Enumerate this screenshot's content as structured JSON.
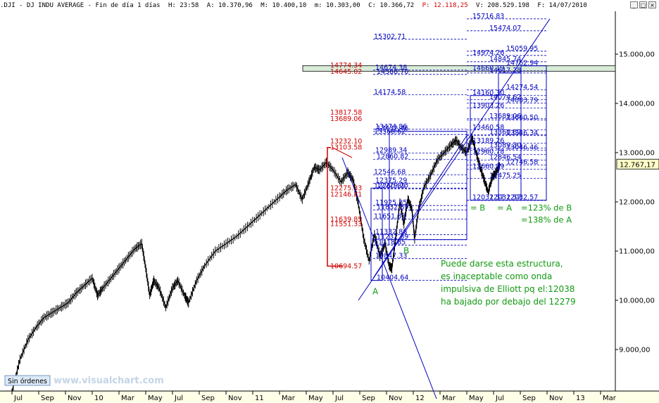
{
  "header": {
    "symbol": ".DJI - DJ INDU AVERAGE - Fin de día 1 días",
    "high": "H: 23:58",
    "open": "A: 10.370,96",
    "max": "M: 10.400,10",
    "min": "m: 10.303,00",
    "close": "C: 10.366,72",
    "pct": "P: 12.118,25",
    "volume": "V: 208.529.198",
    "date": "F: 14/07/2010",
    "window_buttons": [
      "_",
      "□",
      "×"
    ]
  },
  "chart_data": {
    "type": "line",
    "title": "",
    "xlabel": "",
    "ylabel": "",
    "ylim": [
      8250,
      16000
    ],
    "grid": false,
    "last_price": "12.767,17",
    "y_ticks": [
      {
        "value": 9000,
        "label": "9.000,00"
      },
      {
        "value": 10000,
        "label": "10.000,00"
      },
      {
        "value": 11000,
        "label": "11.000,00"
      },
      {
        "value": 12000,
        "label": "12.000,00"
      },
      {
        "value": 13000,
        "label": "13.000,00"
      },
      {
        "value": 14000,
        "label": "14.000,00"
      },
      {
        "value": 15000,
        "label": "15.000,00"
      }
    ],
    "x_ticks": [
      {
        "i": 0,
        "label": "Jul"
      },
      {
        "i": 1,
        "label": "Sep"
      },
      {
        "i": 2,
        "label": "Nov"
      },
      {
        "i": 3,
        "label": "10"
      },
      {
        "i": 4,
        "label": "Mar"
      },
      {
        "i": 5,
        "label": "May"
      },
      {
        "i": 6,
        "label": "Jul"
      },
      {
        "i": 7,
        "label": "Sep"
      },
      {
        "i": 8,
        "label": "Nov"
      },
      {
        "i": 9,
        "label": "11"
      },
      {
        "i": 10,
        "label": "Mar"
      },
      {
        "i": 11,
        "label": "May"
      },
      {
        "i": 12,
        "label": "Jul"
      },
      {
        "i": 13,
        "label": "Sep"
      },
      {
        "i": 14,
        "label": "Nov"
      },
      {
        "i": 15,
        "label": "12"
      },
      {
        "i": 16,
        "label": "Mar"
      },
      {
        "i": 17,
        "label": "May"
      },
      {
        "i": 18,
        "label": "Jul"
      },
      {
        "i": 19,
        "label": "Sep"
      },
      {
        "i": 20,
        "label": "Nov"
      },
      {
        "i": 21,
        "label": "13"
      },
      {
        "i": 22,
        "label": "Mar"
      }
    ],
    "series": [
      {
        "values": [
          {
            "t": 0.0,
            "v": 8150
          },
          {
            "t": 0.3,
            "v": 8800
          },
          {
            "t": 0.6,
            "v": 9200
          },
          {
            "t": 0.9,
            "v": 9450
          },
          {
            "t": 1.2,
            "v": 9650
          },
          {
            "t": 1.5,
            "v": 9750
          },
          {
            "t": 1.8,
            "v": 9850
          },
          {
            "t": 2.1,
            "v": 9950
          },
          {
            "t": 2.4,
            "v": 10150
          },
          {
            "t": 2.7,
            "v": 10300
          },
          {
            "t": 3.0,
            "v": 10450
          },
          {
            "t": 3.2,
            "v": 10100
          },
          {
            "t": 3.4,
            "v": 10250
          },
          {
            "t": 3.7,
            "v": 10450
          },
          {
            "t": 4.0,
            "v": 10650
          },
          {
            "t": 4.3,
            "v": 10850
          },
          {
            "t": 4.6,
            "v": 11050
          },
          {
            "t": 4.85,
            "v": 11150
          },
          {
            "t": 5.0,
            "v": 10650
          },
          {
            "t": 5.15,
            "v": 10100
          },
          {
            "t": 5.3,
            "v": 10400
          },
          {
            "t": 5.5,
            "v": 10250
          },
          {
            "t": 5.75,
            "v": 9850
          },
          {
            "t": 6.0,
            "v": 10250
          },
          {
            "t": 6.2,
            "v": 10400
          },
          {
            "t": 6.45,
            "v": 10100
          },
          {
            "t": 6.6,
            "v": 9950
          },
          {
            "t": 6.9,
            "v": 10400
          },
          {
            "t": 7.2,
            "v": 10700
          },
          {
            "t": 7.6,
            "v": 11000
          },
          {
            "t": 8.0,
            "v": 11150
          },
          {
            "t": 8.4,
            "v": 11300
          },
          {
            "t": 8.8,
            "v": 11500
          },
          {
            "t": 9.2,
            "v": 11700
          },
          {
            "t": 9.6,
            "v": 11900
          },
          {
            "t": 10.0,
            "v": 12100
          },
          {
            "t": 10.3,
            "v": 12250
          },
          {
            "t": 10.6,
            "v": 12350
          },
          {
            "t": 10.85,
            "v": 12050
          },
          {
            "t": 11.1,
            "v": 12400
          },
          {
            "t": 11.3,
            "v": 12700
          },
          {
            "t": 11.5,
            "v": 12650
          },
          {
            "t": 11.75,
            "v": 12800
          },
          {
            "t": 12.0,
            "v": 12650
          },
          {
            "t": 12.3,
            "v": 12400
          },
          {
            "t": 12.55,
            "v": 12600
          },
          {
            "t": 12.75,
            "v": 12450
          },
          {
            "t": 12.95,
            "v": 11950
          },
          {
            "t": 13.15,
            "v": 11250
          },
          {
            "t": 13.35,
            "v": 10800
          },
          {
            "t": 13.55,
            "v": 11350
          },
          {
            "t": 13.75,
            "v": 10900
          },
          {
            "t": 13.95,
            "v": 11150
          },
          {
            "t": 14.1,
            "v": 10700
          },
          {
            "t": 14.2,
            "v": 10650
          },
          {
            "t": 14.35,
            "v": 11300
          },
          {
            "t": 14.5,
            "v": 12000
          },
          {
            "t": 14.65,
            "v": 11550
          },
          {
            "t": 14.8,
            "v": 12050
          },
          {
            "t": 14.95,
            "v": 11850
          },
          {
            "t": 15.05,
            "v": 11250
          },
          {
            "t": 15.2,
            "v": 11850
          },
          {
            "t": 15.4,
            "v": 12300
          },
          {
            "t": 15.65,
            "v": 12550
          },
          {
            "t": 15.9,
            "v": 12850
          },
          {
            "t": 16.15,
            "v": 13000
          },
          {
            "t": 16.4,
            "v": 13150
          },
          {
            "t": 16.6,
            "v": 13250
          },
          {
            "t": 16.8,
            "v": 13100
          },
          {
            "t": 17.0,
            "v": 13000
          },
          {
            "t": 17.2,
            "v": 13300
          },
          {
            "t": 17.35,
            "v": 13000
          },
          {
            "t": 17.5,
            "v": 12700
          },
          {
            "t": 17.65,
            "v": 12450
          },
          {
            "t": 17.8,
            "v": 12200
          },
          {
            "t": 17.95,
            "v": 12500
          },
          {
            "t": 18.1,
            "v": 12600
          },
          {
            "t": 18.25,
            "v": 12767
          }
        ]
      }
    ],
    "fib_levels_red": [
      {
        "v": 14774.34,
        "label": "14774.34"
      },
      {
        "v": 14645.02,
        "label": "14645.02"
      },
      {
        "v": 13817.58,
        "label": "13817.58"
      },
      {
        "v": 13689.06,
        "label": "13689.06"
      },
      {
        "v": 13232.1,
        "label": "13232.10"
      },
      {
        "v": 13103.58,
        "label": "13103.58"
      },
      {
        "v": 12275.33,
        "label": "12275.33"
      },
      {
        "v": 12146.81,
        "label": "12146.81"
      },
      {
        "v": 11639.85,
        "label": "11639.85"
      },
      {
        "v": 11551.33,
        "label": "11551.33"
      },
      {
        "v": 10694.57,
        "label": "10694.57"
      }
    ],
    "fib_levels_a": [
      {
        "v": 15302.71,
        "label": "15302.71"
      },
      {
        "v": 14674.38,
        "label": "14674.38"
      },
      {
        "v": 14588.7,
        "label": "14588.70"
      },
      {
        "v": 14174.58,
        "label": "14174.58"
      },
      {
        "v": 13474.86,
        "label": "13474.86"
      },
      {
        "v": 13432.46,
        "label": "13432.46"
      },
      {
        "v": 13368.62,
        "label": "13368.62"
      },
      {
        "v": 12989.34,
        "label": "12989.34"
      },
      {
        "v": 12860.82,
        "label": "12860.82"
      },
      {
        "v": 12546.68,
        "label": "12546.68"
      },
      {
        "v": 12375.29,
        "label": "12375.29"
      },
      {
        "v": 12279.23,
        "label": "12279.23"
      },
      {
        "v": 12260.89,
        "label": "12260.89"
      },
      {
        "v": 11925.85,
        "label": "11925.85"
      },
      {
        "v": 11832.89,
        "label": "11832.89"
      },
      {
        "v": 11651.83,
        "label": "11651.83"
      },
      {
        "v": 11332.86,
        "label": "11332.86"
      },
      {
        "v": 11232.89,
        "label": "11232.89"
      },
      {
        "v": 11118.85,
        "label": "11118.85"
      },
      {
        "v": 10847.33,
        "label": "10847.33"
      },
      {
        "v": 10404.64,
        "label": "10404.64"
      }
    ],
    "fib_levels_b": [
      {
        "v": 15716.83,
        "label": "15716.83"
      },
      {
        "v": 15474.07,
        "label": "15474.07"
      },
      {
        "v": 15059.95,
        "label": "15059.95"
      },
      {
        "v": 14974.26,
        "label": "14974.26"
      },
      {
        "v": 14845.74,
        "label": "14845.74"
      },
      {
        "v": 14762.94,
        "label": "14762.94"
      },
      {
        "v": 14660.19,
        "label": "14660.19"
      },
      {
        "v": 14617.28,
        "label": "14617.28"
      },
      {
        "v": 14274.54,
        "label": "14274.54"
      },
      {
        "v": 14160.3,
        "label": "14160.30"
      },
      {
        "v": 14074.62,
        "label": "14074.62"
      },
      {
        "v": 14003.79,
        "label": "14003.79"
      },
      {
        "v": 13903.26,
        "label": "13903.26"
      },
      {
        "v": 13689.06,
        "label": "13689.06"
      },
      {
        "v": 13660.5,
        "label": "13660.50"
      },
      {
        "v": 13460.58,
        "label": "13460.58"
      },
      {
        "v": 13360.62,
        "label": "13360.62"
      },
      {
        "v": 13346.34,
        "label": "13346.34"
      },
      {
        "v": 13189.26,
        "label": "13189.26"
      },
      {
        "v": 13089.3,
        "label": "13089.30"
      },
      {
        "v": 13046.46,
        "label": "13046.46"
      },
      {
        "v": 12960.78,
        "label": "12960.78"
      },
      {
        "v": 12846.54,
        "label": "12846.54"
      },
      {
        "v": 12746.58,
        "label": "12746.58"
      },
      {
        "v": 12660.89,
        "label": "12660.89"
      },
      {
        "v": 12475.25,
        "label": "12475.25"
      },
      {
        "v": 12032.57,
        "label": "12032.57"
      },
      {
        "v": 12032.57,
        "label": "12032.57"
      },
      {
        "v": 12032.57,
        "label": "12032.57"
      }
    ],
    "labels": {
      "a_low": "A",
      "b_low": "B",
      "eq_b": "= B",
      "eq_a": "= A",
      "ratio_b": "=123% de B",
      "ratio_a": "=138% de A"
    },
    "annotation_lines": [
      "Puede darse esta estructura,",
      "es inaceptable como onda",
      "impulsiva de Elliott pq el:12038",
      "ha bajado por debajo del 12279"
    ]
  },
  "footer": {
    "orders_button": "Sin órdenes",
    "watermark": "www.visualchart.com"
  },
  "colors": {
    "price": "#000000",
    "fib_red": "#d00000",
    "fib_blue": "#0000c0",
    "annotation": "#129a12",
    "zone_fill": "#d8ecd8"
  }
}
